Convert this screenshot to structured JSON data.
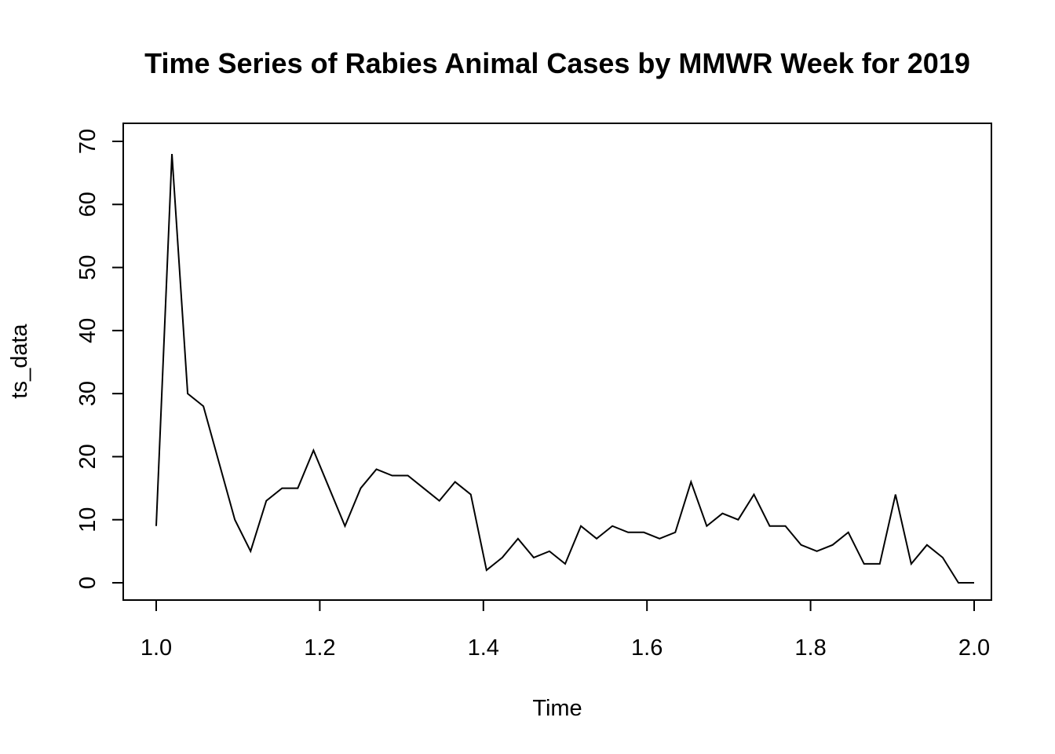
{
  "chart_data": {
    "type": "line",
    "title": "Time Series of Rabies Animal Cases by MMWR Week for 2019",
    "xlabel": "Time",
    "ylabel": "ts_data",
    "xlim": [
      1.0,
      2.0
    ],
    "ylim": [
      0,
      70
    ],
    "xticks": [
      "1.0",
      "1.2",
      "1.4",
      "1.6",
      "1.8",
      "2.0"
    ],
    "yticks": [
      "0",
      "10",
      "20",
      "30",
      "40",
      "50",
      "60",
      "70"
    ],
    "grid": false,
    "series": [
      {
        "x_start": 1.0,
        "frequency": 52,
        "values": [
          9,
          68,
          30,
          28,
          19,
          10,
          5,
          13,
          15,
          15,
          21,
          15,
          9,
          15,
          18,
          17,
          17,
          15,
          13,
          16,
          14,
          2,
          4,
          7,
          4,
          5,
          3,
          9,
          7,
          9,
          8,
          8,
          7,
          8,
          16,
          9,
          11,
          10,
          14,
          9,
          9,
          6,
          5,
          6,
          8,
          3,
          3,
          14,
          3,
          6,
          4,
          0,
          0
        ]
      }
    ]
  }
}
